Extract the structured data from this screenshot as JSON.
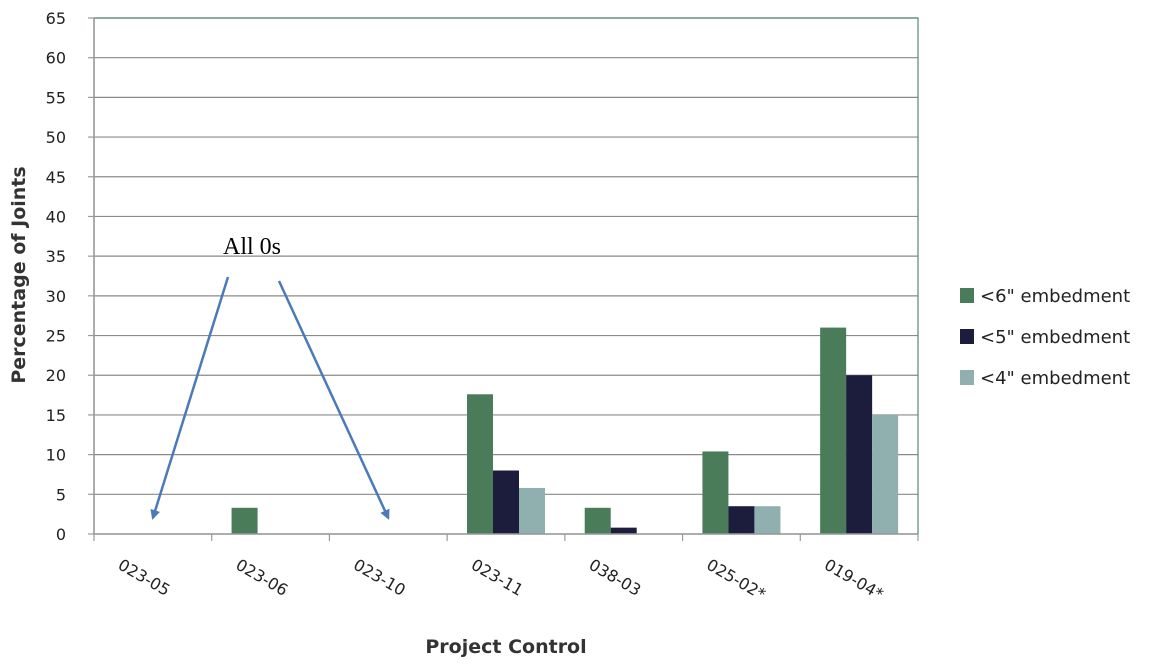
{
  "chart_data": {
    "type": "bar",
    "title": "",
    "xlabel": "Project Control",
    "ylabel": "Percentage of Joints",
    "ylim": [
      0,
      65
    ],
    "yticks": [
      0,
      5,
      10,
      15,
      20,
      25,
      30,
      35,
      40,
      45,
      50,
      55,
      60,
      65
    ],
    "grid": true,
    "legend_position": "right",
    "categories": [
      "023-05",
      "023-06",
      "023-10",
      "023-11",
      "038-03",
      "025-02*",
      "019-04*"
    ],
    "series": [
      {
        "name": "<6\" embedment",
        "color": "#4a7c59",
        "values": [
          0,
          3.3,
          0,
          17.6,
          3.3,
          10.4,
          26.0
        ]
      },
      {
        "name": "<5\" embedment",
        "color": "#1c1c3c",
        "values": [
          0,
          0,
          0,
          8.0,
          0.8,
          3.5,
          20.0
        ]
      },
      {
        "name": "<4\" embedment",
        "color": "#8fb0ae",
        "values": [
          0,
          0,
          0,
          5.8,
          0,
          3.5,
          15.0
        ]
      }
    ],
    "annotations": [
      {
        "text": "All 0s",
        "points_to": [
          "023-05",
          "023-10"
        ]
      }
    ]
  }
}
